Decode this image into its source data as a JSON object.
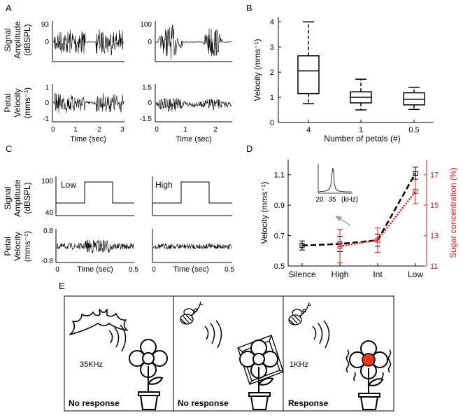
{
  "panel_letters": {
    "a": "A",
    "b": "B",
    "c": "C",
    "d": "D",
    "e": "E"
  },
  "colors": {
    "black": "#000000",
    "red": "#e41a1c",
    "flower_center": "#e8391d",
    "arrow": "#9a9a9a"
  },
  "panelA": {
    "ylabel_top": [
      "Signal",
      "Amplitude",
      "(dBSPL)"
    ],
    "ylabel_bottom": [
      "Petal",
      "Velocity",
      "(mms⁻¹)"
    ],
    "left_top_ticks": [
      "93",
      "0"
    ],
    "right_top_ticks": [
      "100",
      "0"
    ],
    "left_bottom_ticks": [
      "1",
      "0",
      "-1"
    ],
    "right_bottom_ticks": [
      "1.5",
      "0",
      "-1.5"
    ],
    "left_x_ticks": [
      "0",
      "1",
      "2",
      "3"
    ],
    "right_x_ticks": [
      "0",
      "1",
      "2"
    ],
    "xlabel": "Time (sec)"
  },
  "panelC": {
    "ylabel_top": [
      "Signal",
      "Amplitude",
      "(dBSPL)"
    ],
    "ylabel_bottom": [
      "Petal",
      "Velocity",
      "(mms⁻¹)"
    ],
    "top_ticks": [
      "100",
      "40"
    ],
    "bottom_ticks": [
      "0.8",
      "-0.8"
    ],
    "label_low": "Low",
    "label_high": "High",
    "x_ticks": [
      "0",
      "0.5"
    ],
    "xlabel": "Time (sec)"
  },
  "chart_data": [
    {
      "type": "box",
      "panel": "B",
      "categories": [
        "4",
        "1",
        "0.5"
      ],
      "boxes": [
        {
          "min": 0.75,
          "q1": 1.15,
          "median": 2.05,
          "q3": 2.65,
          "max": 4.0
        },
        {
          "min": 0.5,
          "q1": 0.78,
          "median": 1.0,
          "q3": 1.22,
          "max": 1.72
        },
        {
          "min": 0.52,
          "q1": 0.7,
          "median": 0.92,
          "q3": 1.18,
          "max": 1.4
        }
      ],
      "xlabel": "Number of petals (#)",
      "ylabel": "Velocity (mms⁻¹)",
      "ylim": [
        0,
        4.2
      ],
      "yticks": [
        "0",
        "1",
        "2",
        "3",
        "4"
      ]
    },
    {
      "type": "line",
      "panel": "D",
      "categories": [
        "Silence",
        "High",
        "Int",
        "Low"
      ],
      "series": [
        {
          "axis": "left",
          "color": "#000000",
          "values": [
            0.635,
            0.645,
            0.67,
            1.11
          ],
          "errors": [
            0.03,
            0.05,
            0.04,
            0.04
          ]
        },
        {
          "axis": "right",
          "color": "#e41a1c",
          "values": [
            null,
            12.3,
            12.7,
            15.9
          ],
          "errors": [
            null,
            1.1,
            0.8,
            0.8
          ]
        }
      ],
      "ylabel_left": "Velocity (mms⁻¹)",
      "ylabel_right": "Sugar concentration (%)",
      "ylim_left": [
        0.5,
        1.2
      ],
      "ylim_right": [
        11,
        18
      ],
      "yticks_left": [
        "0.5",
        "0.7",
        "0.9",
        "1.1"
      ],
      "yticks_right": [
        "11",
        "13",
        "15",
        "17"
      ],
      "inset_ticks": [
        "20",
        "35",
        "(kHz)"
      ]
    }
  ],
  "panelE": {
    "bat_freq": "35KHz",
    "bee_freq": "1KHz",
    "responses": [
      "No response",
      "No response",
      "Response"
    ]
  }
}
